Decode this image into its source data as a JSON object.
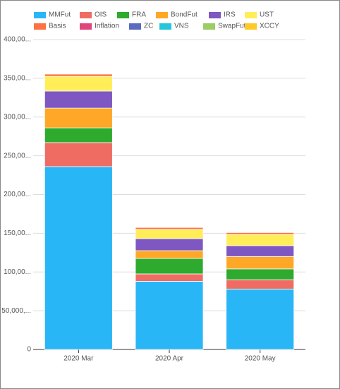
{
  "chart_data": {
    "type": "stacked-bar",
    "categories": [
      "2020 Mar",
      "2020 Apr",
      "2020 May"
    ],
    "series": [
      {
        "name": "MMFut",
        "color": "#29b6f6",
        "values": [
          236000,
          88000,
          78000
        ]
      },
      {
        "name": "OIS",
        "color": "#ef6c62",
        "values": [
          31000,
          9500,
          12000
        ]
      },
      {
        "name": "FRA",
        "color": "#2eaa2e",
        "values": [
          19000,
          20000,
          14000
        ]
      },
      {
        "name": "BondFut",
        "color": "#ffa726",
        "values": [
          25500,
          10000,
          16000
        ]
      },
      {
        "name": "IRS",
        "color": "#7e57c2",
        "values": [
          22000,
          15500,
          14000
        ]
      },
      {
        "name": "UST",
        "color": "#ffee58",
        "values": [
          19000,
          12000,
          14500
        ]
      },
      {
        "name": "Basis",
        "color": "#ff7043",
        "values": [
          3000,
          2500,
          2500
        ]
      },
      {
        "name": "Inflation",
        "color": "#e0457b",
        "values": [
          300,
          200,
          200
        ]
      },
      {
        "name": "ZC",
        "color": "#5c6bc0",
        "values": [
          200,
          100,
          100
        ]
      },
      {
        "name": "VNS",
        "color": "#26c6da",
        "values": [
          100,
          100,
          100
        ]
      },
      {
        "name": "SwapFut",
        "color": "#9ccc65",
        "values": [
          200,
          100,
          100
        ]
      },
      {
        "name": "XCCY",
        "color": "#ffca28",
        "values": [
          200,
          100,
          100
        ]
      }
    ],
    "ylim": [
      0,
      400000
    ],
    "yticks": [
      0,
      {
        "value": 50000,
        "label": "50,000,..."
      },
      {
        "value": 100000,
        "label": "100,00..."
      },
      {
        "value": 150000,
        "label": "150,00..."
      },
      {
        "value": 200000,
        "label": "200,00..."
      },
      {
        "value": 250000,
        "label": "250,00..."
      },
      {
        "value": 300000,
        "label": "300,00..."
      },
      {
        "value": 350000,
        "label": "350,00..."
      },
      {
        "value": 400000,
        "label": "400,00..."
      }
    ],
    "grid": true
  }
}
